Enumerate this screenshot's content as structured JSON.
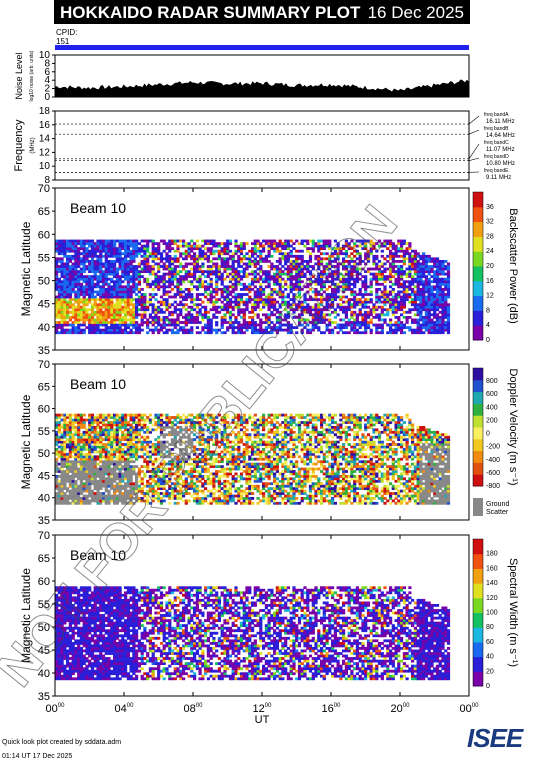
{
  "header": {
    "title": "HOKKAIDO RADAR SUMMARY PLOT",
    "date": "16 Dec 2025"
  },
  "cpid": {
    "label": "CPID:",
    "value": "151"
  },
  "watermark_text": "NOT FOR PUBLICATION",
  "footer": {
    "credit": "Quick look plot created by sddata.adm",
    "timestamp": "01:14 UT 17 Dec 2025"
  },
  "logo_text": "ISEE",
  "colors": {
    "cpid_bar": "#2222ee",
    "ground_scatter": "#888888"
  },
  "chart_data": [
    {
      "type": "area",
      "ylabel": "Noise Level",
      "ylabel_sub": "log10 noise (arb. units)",
      "ylim": [
        0,
        10
      ],
      "y_ticks": [
        "0",
        "2",
        "4",
        "6",
        "8",
        "10"
      ],
      "x": [
        0,
        2,
        4,
        6,
        8,
        10,
        12,
        14,
        16,
        18,
        20,
        22,
        24
      ],
      "values": [
        2.5,
        2.2,
        2.5,
        3.0,
        3.5,
        3.2,
        3.3,
        2.8,
        3.0,
        2.3,
        1.5,
        2.8,
        4.0
      ]
    },
    {
      "type": "line",
      "ylabel": "Frequency",
      "ylabel_sub": "(MHz)",
      "ylim": [
        8,
        18
      ],
      "y_ticks": [
        "8",
        "10",
        "12",
        "14",
        "16",
        "18"
      ],
      "series": [
        {
          "name": "freq bandA",
          "value": "16.11 MHz",
          "y": 16.11
        },
        {
          "name": "freq bandB",
          "value": "14.64 MHz",
          "y": 14.64
        },
        {
          "name": "freq bandC",
          "value": "11.07 MHz",
          "y": 11.07
        },
        {
          "name": "freq bandD",
          "value": "10.80 MHz",
          "y": 10.8
        },
        {
          "name": "freq bandE",
          "value": "9.11 MHz",
          "y": 9.11
        }
      ]
    },
    {
      "type": "heatmap",
      "beam_label": "Beam 10",
      "ylabel": "Magnetic Latitude",
      "ylim": [
        35,
        70
      ],
      "y_ticks": [
        "35",
        "40",
        "45",
        "50",
        "55",
        "60",
        "65",
        "70"
      ],
      "colorbar_label": "Backscatter Power (dB)",
      "colorbar_ticks": [
        "0",
        "4",
        "8",
        "12",
        "16",
        "20",
        "24",
        "28",
        "32",
        "36"
      ],
      "colorbar_range": [
        0,
        36
      ]
    },
    {
      "type": "heatmap",
      "beam_label": "Beam 10",
      "ylabel": "Magnetic Latitude",
      "ylim": [
        35,
        70
      ],
      "y_ticks": [
        "35",
        "40",
        "45",
        "50",
        "55",
        "60",
        "65",
        "70"
      ],
      "colorbar_label": "Doppler Velocity (m s⁻¹)",
      "colorbar_ticks": [
        "-800",
        "-600",
        "-400",
        "-200",
        "0",
        "200",
        "400",
        "600",
        "800"
      ],
      "colorbar_range": [
        -800,
        800
      ],
      "ground_scatter_label": [
        "Ground",
        "Scatter"
      ]
    },
    {
      "type": "heatmap",
      "beam_label": "Beam 10",
      "ylabel": "Magnetic Latitude",
      "ylim": [
        35,
        70
      ],
      "y_ticks": [
        "35",
        "40",
        "45",
        "50",
        "55",
        "60",
        "65",
        "70"
      ],
      "colorbar_label": "Spectral Width (m s⁻¹)",
      "colorbar_ticks": [
        "0",
        "20",
        "40",
        "60",
        "80",
        "100",
        "120",
        "140",
        "160",
        "180"
      ],
      "colorbar_range": [
        0,
        180
      ]
    }
  ],
  "x_axis": {
    "label": "UT",
    "range": [
      0,
      24
    ],
    "ticks": [
      {
        "h": "00",
        "m": "00",
        "v": 0
      },
      {
        "h": "04",
        "m": "00",
        "v": 4
      },
      {
        "h": "08",
        "m": "00",
        "v": 8
      },
      {
        "h": "12",
        "m": "00",
        "v": 12
      },
      {
        "h": "16",
        "m": "00",
        "v": 16
      },
      {
        "h": "20",
        "m": "00",
        "v": 20
      },
      {
        "h": "00",
        "m": "00",
        "v": 24
      }
    ]
  }
}
